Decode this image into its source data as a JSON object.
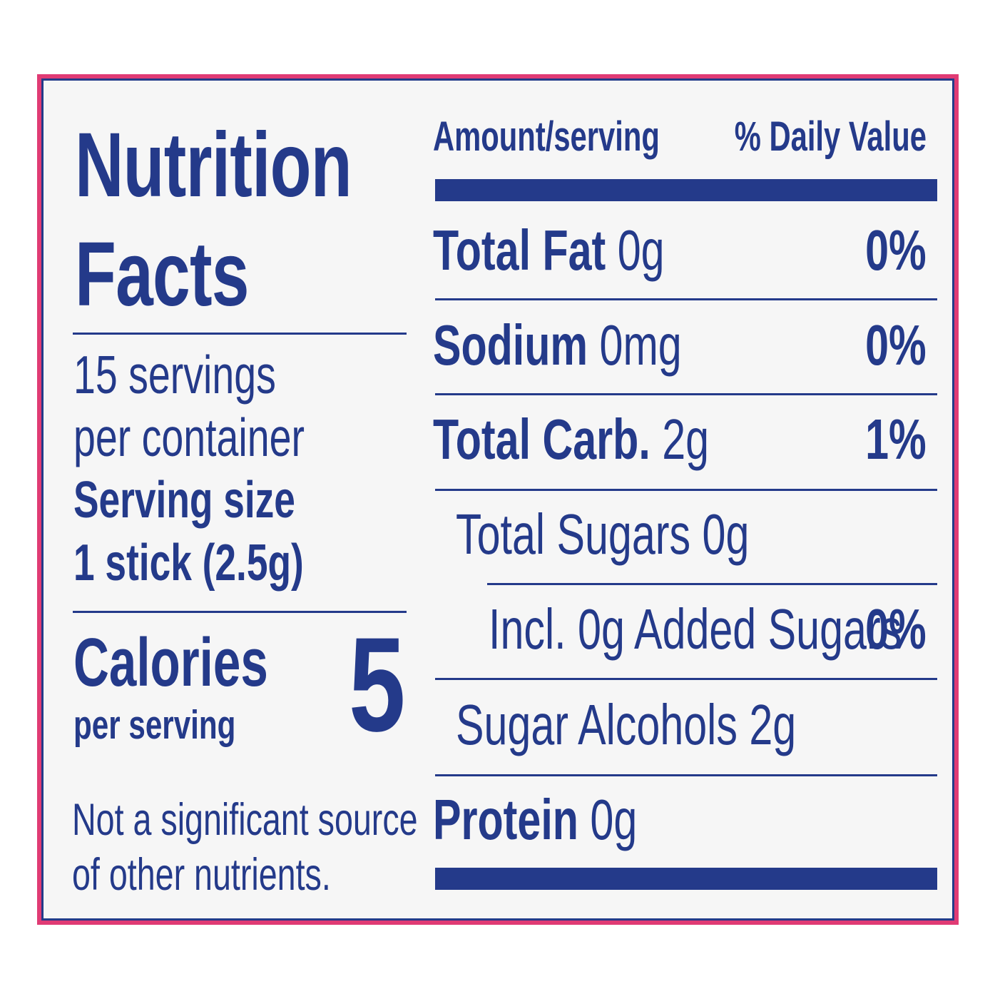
{
  "label": {
    "title_line1": "Nutrition",
    "title_line2": "Facts",
    "servings_line1": "15 servings",
    "servings_line2": "per container",
    "serving_size_label": "Serving size",
    "serving_size_value": "1 stick (2.5g)",
    "calories_label": "Calories",
    "calories_sub": "per serving",
    "calories_value": "5",
    "note_line1": "Not a significant source",
    "note_line2": "of other nutrients."
  },
  "table": {
    "header_left": "Amount/serving",
    "header_right": "% Daily Value",
    "rows": [
      {
        "name": "Total Fat",
        "amount": "0g",
        "dv": "0%"
      },
      {
        "name": "Sodium",
        "amount": "0mg",
        "dv": "0%"
      },
      {
        "name": "Total Carb.",
        "amount": "2g",
        "dv": "1%"
      },
      {
        "name": "Total Sugars 0g",
        "amount": "",
        "dv": ""
      },
      {
        "name": "Incl. 0g Added Sugars",
        "amount": "",
        "dv": "0%"
      },
      {
        "name": "Sugar Alcohols 2g",
        "amount": "",
        "dv": ""
      },
      {
        "name": "Protein",
        "amount": "0g",
        "dv": ""
      }
    ]
  },
  "colors": {
    "ink": "#243a8a",
    "border_accent": "#e03b74",
    "background": "#f6f6f6"
  }
}
